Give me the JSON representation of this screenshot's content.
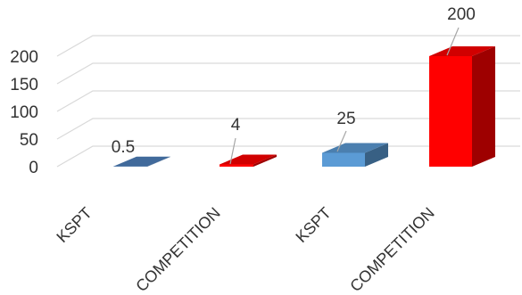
{
  "chart_data": {
    "type": "bar",
    "style": "3d-column",
    "categories": [
      "KSPT",
      "COMPETITION",
      "KSPT",
      "COMPETITION"
    ],
    "values": [
      0.5,
      4,
      25,
      200
    ],
    "data_labels": [
      "0.5",
      "4",
      "25",
      "200"
    ],
    "bar_colors": [
      "#4f81bd",
      "#ff0000",
      "#5b9bd5",
      "#ff0000"
    ],
    "y_ticks": [
      "0",
      "50",
      "100",
      "150",
      "200"
    ],
    "ylim": [
      0,
      200
    ],
    "grid": true,
    "title": "",
    "xlabel": "",
    "ylabel": ""
  }
}
